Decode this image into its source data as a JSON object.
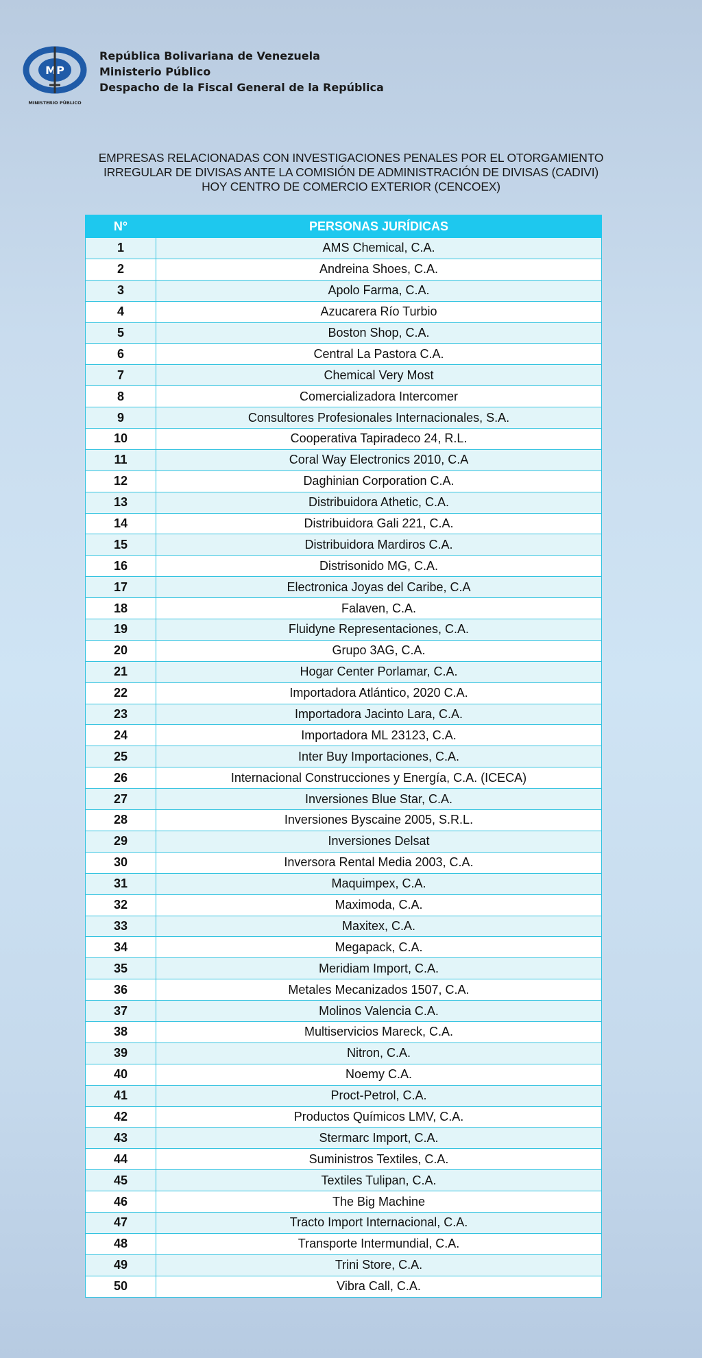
{
  "header": {
    "logo_text": "MP",
    "logo_caption": "MINISTERIO PÚBLICO",
    "lines": [
      "República Bolivariana de Venezuela",
      "Ministerio Público",
      "Despacho de la Fiscal General de la República"
    ]
  },
  "title_lines": [
    "EMPRESAS RELACIONADAS CON INVESTIGACIONES PENALES POR EL OTORGAMIENTO",
    "IRREGULAR DE DIVISAS ANTE LA COMISIÓN DE ADMINISTRACIÓN DE DIVISAS (CADIVI)",
    "HOY CENTRO DE COMERCIO EXTERIOR (CENCOEX)"
  ],
  "table": {
    "columns": [
      "N°",
      "PERSONAS JURÍDICAS"
    ],
    "rows": [
      "AMS Chemical, C.A.",
      "Andreina Shoes, C.A.",
      "Apolo Farma, C.A.",
      "Azucarera Río Turbio",
      "Boston Shop, C.A.",
      "Central La Pastora C.A.",
      "Chemical Very Most",
      "Comercializadora Intercomer",
      "Consultores Profesionales Internacionales, S.A.",
      "Cooperativa Tapiradeco 24, R.L.",
      "Coral Way Electronics 2010, C.A",
      "Daghinian Corporation C.A.",
      "Distribuidora Athetic, C.A.",
      "Distribuidora Gali 221, C.A.",
      "Distribuidora Mardiros C.A.",
      "Distrisonido MG, C.A.",
      "Electronica Joyas del Caribe, C.A",
      "Falaven, C.A.",
      "Fluidyne Representaciones, C.A.",
      "Grupo 3AG, C.A.",
      "Hogar Center Porlamar, C.A.",
      "Importadora Atlántico, 2020 C.A.",
      "Importadora Jacinto Lara, C.A.",
      "Importadora ML 23123, C.A.",
      "Inter Buy Importaciones, C.A.",
      "Internacional Construcciones y Energía, C.A. (ICECA)",
      "Inversiones Blue Star, C.A.",
      "Inversiones Byscaine 2005, S.R.L.",
      "Inversiones Delsat",
      "Inversora Rental Media 2003, C.A.",
      "Maquimpex, C.A.",
      "Maximoda, C.A.",
      "Maxitex, C.A.",
      "Megapack, C.A.",
      "Meridiam Import, C.A.",
      "Metales Mecanizados 1507, C.A.",
      "Molinos Valencia C.A.",
      "Multiservicios Mareck, C.A.",
      "Nitron, C.A.",
      "Noemy C.A.",
      "Proct-Petrol, C.A.",
      "Productos Químicos LMV, C.A.",
      "Stermarc Import, C.A.",
      "Suministros Textiles, C.A.",
      "Textiles Tulipan, C.A.",
      "The Big Machine",
      "Tracto Import Internacional, C.A.",
      "Transporte Intermundial, C.A.",
      "Trini Store, C.A.",
      "Vibra Call, C.A."
    ]
  },
  "colors": {
    "header_bg": "#1ec8ee",
    "row_alt": "#e2f5f9",
    "logo_blue": "#1f5ba8"
  }
}
